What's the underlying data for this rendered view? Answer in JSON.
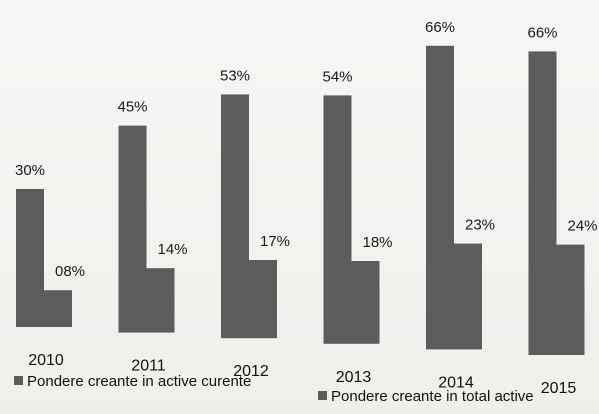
{
  "chart_data": {
    "type": "bar",
    "categories": [
      "2010",
      "2011",
      "2012",
      "2013",
      "2014",
      "2015"
    ],
    "series": [
      {
        "name": "Pondere creante in active curente",
        "values": [
          30,
          45,
          53,
          54,
          66,
          66
        ],
        "labels": [
          "30%",
          "45%",
          "53%",
          "54%",
          "66%",
          "66%"
        ],
        "color": "#5c5c5c"
      },
      {
        "name": "Pondere creante in total active",
        "values": [
          8,
          14,
          17,
          18,
          23,
          24
        ],
        "labels": [
          "08%",
          "14%",
          "17%",
          "18%",
          "23%",
          "24%"
        ],
        "color": "#5c5c5c"
      }
    ],
    "ylim": [
      0,
      70
    ],
    "grid": false,
    "legend_position": "bottom"
  }
}
